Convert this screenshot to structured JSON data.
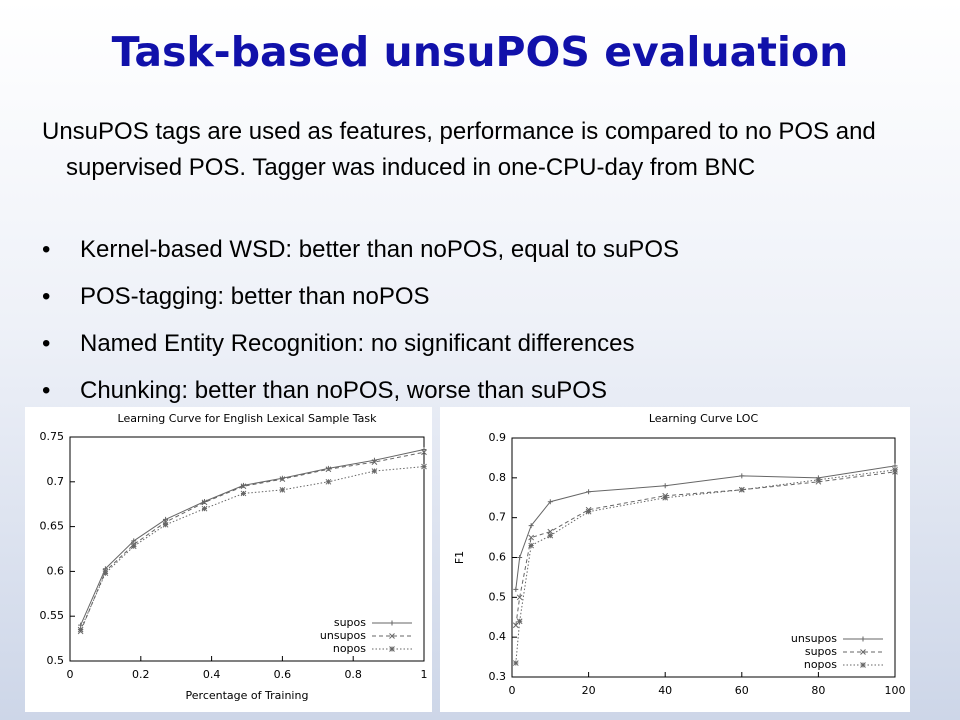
{
  "title": "Task-based unsuPOS evaluation",
  "intro": "UnsuPOS tags are used as features, performance is compared to no POS and supervised POS. Tagger was induced in one-CPU-day from BNC",
  "bullets": [
    "Kernel-based WSD: better than noPOS, equal to suPOS",
    "POS-tagging: better than noPOS",
    "Named Entity Recognition: no significant differences",
    "Chunking: better than noPOS, worse than suPOS"
  ],
  "chart_data": [
    {
      "type": "line",
      "title": "Learning Curve for English Lexical Sample Task",
      "x_label": "Percentage of Training",
      "x": [
        0.03,
        0.1,
        0.18,
        0.27,
        0.38,
        0.49,
        0.6,
        0.73,
        0.86,
        1.0
      ],
      "xlim": [
        0,
        1
      ],
      "xticks": [
        0,
        0.2,
        0.4,
        0.6,
        0.8,
        1
      ],
      "ylim": [
        0.5,
        0.75
      ],
      "yticks": [
        0.5,
        0.55,
        0.6,
        0.65,
        0.7,
        0.75
      ],
      "legend": "lower right",
      "grid": false,
      "series": [
        {
          "name": "supos",
          "color": "#666666",
          "line_style": "solid",
          "marker": "+",
          "values": [
            0.54,
            0.603,
            0.634,
            0.658,
            0.678,
            0.696,
            0.704,
            0.715,
            0.724,
            0.736
          ]
        },
        {
          "name": "unsupos",
          "color": "#666666",
          "line_style": "dashed",
          "marker": "x",
          "values": [
            0.533,
            0.6,
            0.63,
            0.655,
            0.677,
            0.695,
            0.703,
            0.714,
            0.722,
            0.733
          ]
        },
        {
          "name": "nopos",
          "color": "#666666",
          "line_style": "dotted",
          "marker": "*",
          "values": [
            0.535,
            0.598,
            0.628,
            0.652,
            0.67,
            0.687,
            0.691,
            0.7,
            0.712,
            0.717
          ]
        }
      ]
    },
    {
      "type": "line",
      "title": "Learning Curve LOC",
      "y_label": "F1",
      "x": [
        1,
        2,
        5,
        10,
        20,
        40,
        60,
        80,
        100
      ],
      "xlim": [
        0,
        100
      ],
      "xticks": [
        0,
        20,
        40,
        60,
        80,
        100
      ],
      "ylim": [
        0.3,
        0.9
      ],
      "yticks": [
        0.3,
        0.4,
        0.5,
        0.6,
        0.7,
        0.8,
        0.9
      ],
      "legend": "lower right",
      "grid": false,
      "series": [
        {
          "name": "unsupos",
          "color": "#666666",
          "line_style": "solid",
          "marker": "+",
          "values": [
            0.52,
            0.6,
            0.68,
            0.74,
            0.765,
            0.78,
            0.805,
            0.8,
            0.83
          ]
        },
        {
          "name": "supos",
          "color": "#666666",
          "line_style": "dashed",
          "marker": "x",
          "values": [
            0.43,
            0.5,
            0.65,
            0.665,
            0.72,
            0.755,
            0.77,
            0.79,
            0.815
          ]
        },
        {
          "name": "nopos",
          "color": "#666666",
          "line_style": "dotted",
          "marker": "*",
          "values": [
            0.335,
            0.44,
            0.63,
            0.655,
            0.715,
            0.75,
            0.77,
            0.795,
            0.82
          ]
        }
      ]
    }
  ]
}
